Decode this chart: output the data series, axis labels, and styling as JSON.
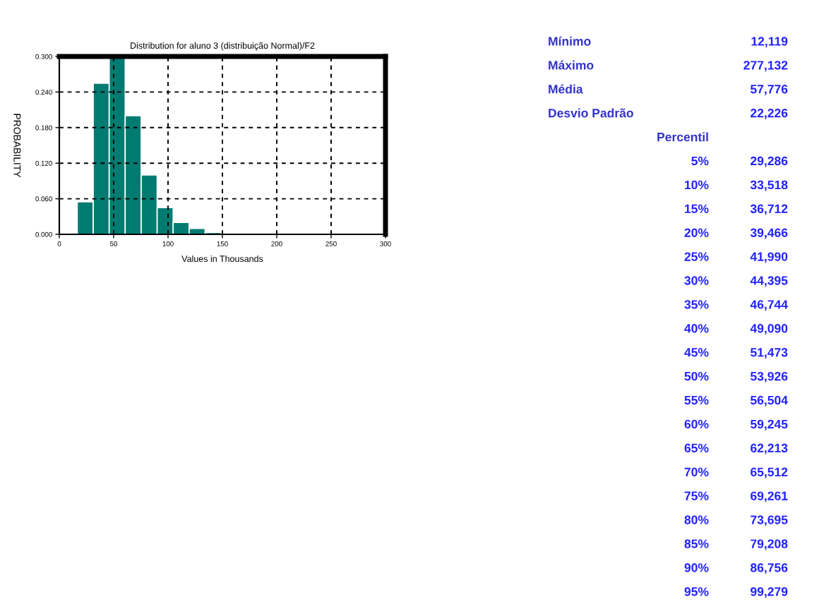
{
  "chart_data": {
    "type": "histogram",
    "title": "Distribution for aluno 3 (distribuição Normal)/F2",
    "xlabel": "Values in Thousands",
    "ylabel": "PROBABILITY",
    "bins": [
      16.5,
      31.2,
      45.9,
      60.6,
      75.3,
      90,
      104.7,
      119.4,
      134.1,
      148.8,
      163.5
    ],
    "values": [
      0.055,
      0.255,
      0.3,
      0.2,
      0.1,
      0.045,
      0.02,
      0.01,
      0.003,
      null
    ],
    "color": "#007b72",
    "xlim": [
      0,
      300
    ],
    "xticks": [
      0,
      50,
      100,
      150,
      200,
      250,
      300
    ],
    "ylim": [
      0,
      0.3
    ],
    "yticks": [
      {
        "value": 0,
        "label": "0.000"
      },
      {
        "value": 0.06,
        "label": "0.060"
      },
      {
        "value": 0.12,
        "label": "0.120"
      },
      {
        "value": 0.18,
        "label": "0.180"
      },
      {
        "value": 0.24,
        "label": "0.240"
      },
      {
        "value": 0.3,
        "label": "0.300"
      }
    ],
    "grid": true,
    "annotations": [
      "Mínimo",
      "12,119",
      "Máximo",
      "277,132",
      "Média",
      "57,776",
      "Desvio Padrão",
      "22,226",
      "Percentil",
      "5%",
      "29,286",
      "10%",
      "33,518",
      "15%",
      "36,712",
      "20%",
      "39,466",
      "25%",
      "41,990",
      "30%",
      "44,395",
      "35%",
      "46,744",
      "40%",
      "49,090",
      "45%",
      "51,473",
      "50%",
      "53,926",
      "55%",
      "56,504",
      "60%",
      "59,245",
      "65%",
      "62,213",
      "70%",
      "65,512",
      "75%",
      "69,261",
      "80%",
      "73,695",
      "85%",
      "79,208",
      "90%",
      "86,756",
      "95%",
      "99,279"
    ]
  }
}
